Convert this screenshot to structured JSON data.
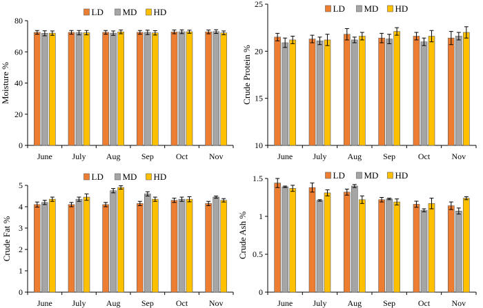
{
  "colors": {
    "LD": "#ED7D31",
    "MD": "#A5A5A5",
    "HD": "#FFC000",
    "axis": "#000000"
  },
  "legend_labels": [
    "LD",
    "MD",
    "HD"
  ],
  "chart_data": [
    {
      "id": "moisture",
      "type": "bar",
      "title": "",
      "xlabel": "",
      "ylabel": "Moisture %",
      "ylim": [
        0,
        80
      ],
      "yticks": [
        0,
        20,
        40,
        60,
        80
      ],
      "ytick_labels": [
        "0",
        "20",
        "40",
        "60",
        "80"
      ],
      "legend": "top-center",
      "categories": [
        "June",
        "July",
        "Aug",
        "Sep",
        "Oct",
        "Nov"
      ],
      "series": [
        {
          "name": "LD",
          "values": [
            72.5,
            72.5,
            72.5,
            72.5,
            72.8,
            72.8
          ],
          "errors": [
            1.2,
            1.2,
            1.2,
            1.2,
            1.2,
            1.2
          ]
        },
        {
          "name": "MD",
          "values": [
            71.9,
            72.3,
            72.0,
            72.5,
            72.9,
            73.0
          ],
          "errors": [
            1.6,
            1.4,
            1.4,
            1.4,
            1.2,
            1.2
          ]
        },
        {
          "name": "HD",
          "values": [
            72.0,
            72.3,
            72.8,
            72.2,
            72.9,
            72.2
          ],
          "errors": [
            1.4,
            1.4,
            1.2,
            1.4,
            1.0,
            1.2
          ]
        }
      ]
    },
    {
      "id": "protein",
      "type": "bar",
      "title": "",
      "xlabel": "",
      "ylabel": "Crude Protein %",
      "ylim": [
        10,
        25
      ],
      "yticks": [
        10,
        15,
        20,
        25
      ],
      "ytick_labels": [
        "10",
        "15",
        "20",
        "25"
      ],
      "legend": "top-center",
      "categories": [
        "June",
        "July",
        "Aug",
        "Sep",
        "Oct",
        "Nov"
      ],
      "series": [
        {
          "name": "LD",
          "values": [
            21.5,
            21.3,
            21.8,
            21.4,
            21.6,
            21.4
          ],
          "errors": [
            0.4,
            0.4,
            0.6,
            0.5,
            0.4,
            0.7
          ]
        },
        {
          "name": "MD",
          "values": [
            20.9,
            21.1,
            21.2,
            21.3,
            21.0,
            21.6
          ],
          "errors": [
            0.5,
            0.4,
            0.3,
            0.5,
            0.4,
            0.4
          ]
        },
        {
          "name": "HD",
          "values": [
            21.2,
            21.2,
            21.6,
            22.1,
            21.6,
            22.0
          ],
          "errors": [
            0.4,
            0.6,
            0.4,
            0.4,
            0.6,
            0.6
          ]
        }
      ]
    },
    {
      "id": "fat",
      "type": "bar",
      "title": "",
      "xlabel": "",
      "ylabel": "Crude Fat %",
      "ylim": [
        0,
        5
      ],
      "yticks": [
        0,
        1,
        2,
        3,
        4,
        5
      ],
      "ytick_labels": [
        "0",
        "1",
        "2",
        "3",
        "4",
        "5"
      ],
      "legend": "top-center",
      "categories": [
        "June",
        "July",
        "Aug",
        "Sep",
        "Oct",
        "Nov"
      ],
      "series": [
        {
          "name": "LD",
          "values": [
            4.1,
            4.1,
            4.1,
            4.15,
            4.3,
            4.15
          ],
          "errors": [
            0.12,
            0.1,
            0.1,
            0.1,
            0.1,
            0.1
          ]
        },
        {
          "name": "MD",
          "values": [
            4.2,
            4.35,
            4.75,
            4.6,
            4.35,
            4.45
          ],
          "errors": [
            0.1,
            0.1,
            0.1,
            0.1,
            0.1,
            0.05
          ]
        },
        {
          "name": "HD",
          "values": [
            4.35,
            4.45,
            4.9,
            4.35,
            4.35,
            4.3
          ],
          "errors": [
            0.1,
            0.15,
            0.08,
            0.1,
            0.12,
            0.08
          ]
        }
      ]
    },
    {
      "id": "ash",
      "type": "bar",
      "title": "",
      "xlabel": "",
      "ylabel": "Crude Ash %",
      "ylim": [
        0,
        1.5
      ],
      "yticks": [
        0,
        0.5,
        1,
        1.5
      ],
      "ytick_labels": [
        "0",
        "0.5",
        "1",
        "1.5"
      ],
      "legend": "top-center",
      "categories": [
        "June",
        "July",
        "Aug",
        "Sep",
        "Oct",
        "Nov"
      ],
      "series": [
        {
          "name": "LD",
          "values": [
            1.44,
            1.38,
            1.32,
            1.22,
            1.16,
            1.14
          ],
          "errors": [
            0.06,
            0.06,
            0.04,
            0.03,
            0.04,
            0.05
          ]
        },
        {
          "name": "MD",
          "values": [
            1.39,
            1.21,
            1.4,
            1.23,
            1.08,
            1.07
          ],
          "errors": [
            0.01,
            0.01,
            0.02,
            0.01,
            0.02,
            0.04
          ]
        },
        {
          "name": "HD",
          "values": [
            1.37,
            1.31,
            1.22,
            1.19,
            1.17,
            1.24
          ],
          "errors": [
            0.04,
            0.04,
            0.05,
            0.04,
            0.07,
            0.02
          ]
        }
      ]
    }
  ]
}
